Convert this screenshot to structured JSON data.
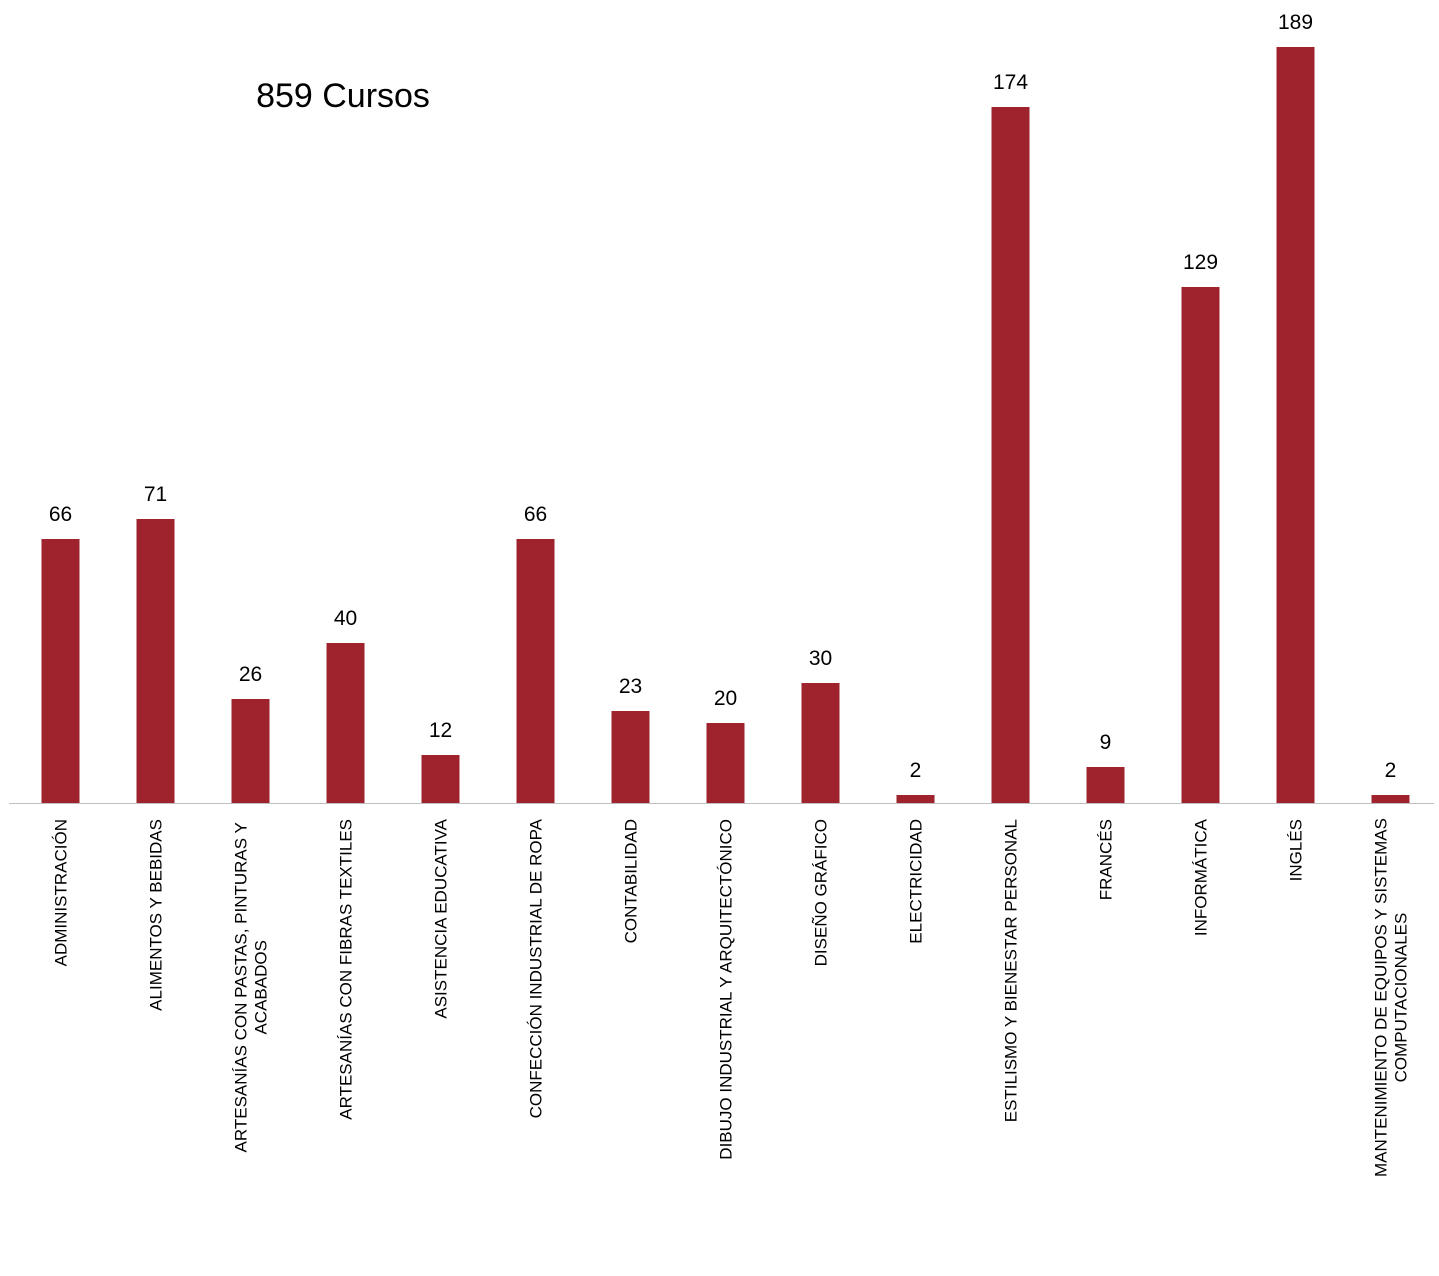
{
  "chart_data": {
    "type": "bar",
    "annotation": "859 Cursos",
    "categories": [
      [
        "ADMINISTRACIÓN"
      ],
      [
        "ALIMENTOS Y BEBIDAS"
      ],
      [
        "ARTESANÍAS CON PASTAS, PINTURAS Y",
        "ACABADOS"
      ],
      [
        "ARTESANÍAS CON FIBRAS TEXTILES"
      ],
      [
        "ASISTENCIA EDUCATIVA"
      ],
      [
        "CONFECCIÓN INDUSTRIAL DE ROPA"
      ],
      [
        "CONTABILIDAD"
      ],
      [
        "DIBUJO INDUSTRIAL Y ARQUITECTÓNICO"
      ],
      [
        "DISEÑO GRÁFICO"
      ],
      [
        "ELECTRICIDAD"
      ],
      [
        "ESTILISMO Y BIENESTAR PERSONAL"
      ],
      [
        "FRANCÉS"
      ],
      [
        "INFORMÁTICA"
      ],
      [
        "INGLÉS"
      ],
      [
        "MANTENIMIENTO DE EQUIPOS Y SISTEMAS",
        "COMPUTACIONALES"
      ]
    ],
    "values": [
      66,
      71,
      26,
      40,
      12,
      66,
      23,
      20,
      30,
      2,
      174,
      9,
      129,
      189,
      2
    ],
    "data_labels": true,
    "ylim": [
      0,
      189
    ],
    "grid": false,
    "legend": "none",
    "colors": {
      "bar": "#9e232c",
      "axis": "#bfbfbf",
      "text": "#000000"
    }
  }
}
